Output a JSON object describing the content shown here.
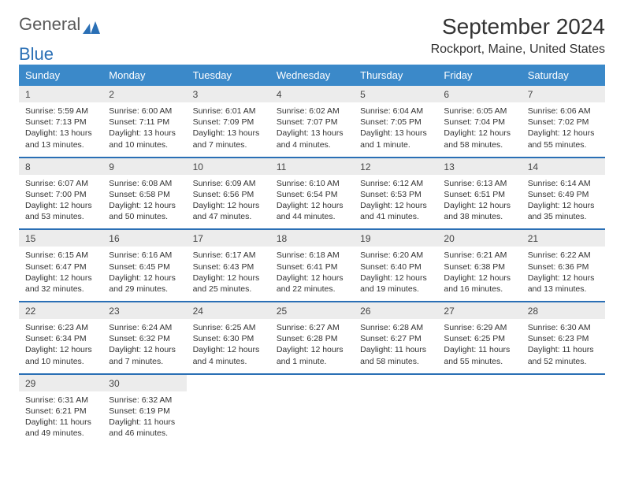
{
  "logo": {
    "word1": "General",
    "word2": "Blue"
  },
  "title": "September 2024",
  "location": "Rockport, Maine, United States",
  "colors": {
    "header_bar": "#3b89c9",
    "divider": "#2a6fb5",
    "day_num_bg": "#ececec",
    "text": "#333333",
    "logo_gray": "#5a5a5a",
    "logo_blue": "#2a6fb5",
    "background": "#ffffff"
  },
  "dow": [
    "Sunday",
    "Monday",
    "Tuesday",
    "Wednesday",
    "Thursday",
    "Friday",
    "Saturday"
  ],
  "weeks": [
    [
      {
        "n": "1",
        "sunrise": "Sunrise: 5:59 AM",
        "sunset": "Sunset: 7:13 PM",
        "day1": "Daylight: 13 hours",
        "day2": "and 13 minutes."
      },
      {
        "n": "2",
        "sunrise": "Sunrise: 6:00 AM",
        "sunset": "Sunset: 7:11 PM",
        "day1": "Daylight: 13 hours",
        "day2": "and 10 minutes."
      },
      {
        "n": "3",
        "sunrise": "Sunrise: 6:01 AM",
        "sunset": "Sunset: 7:09 PM",
        "day1": "Daylight: 13 hours",
        "day2": "and 7 minutes."
      },
      {
        "n": "4",
        "sunrise": "Sunrise: 6:02 AM",
        "sunset": "Sunset: 7:07 PM",
        "day1": "Daylight: 13 hours",
        "day2": "and 4 minutes."
      },
      {
        "n": "5",
        "sunrise": "Sunrise: 6:04 AM",
        "sunset": "Sunset: 7:05 PM",
        "day1": "Daylight: 13 hours",
        "day2": "and 1 minute."
      },
      {
        "n": "6",
        "sunrise": "Sunrise: 6:05 AM",
        "sunset": "Sunset: 7:04 PM",
        "day1": "Daylight: 12 hours",
        "day2": "and 58 minutes."
      },
      {
        "n": "7",
        "sunrise": "Sunrise: 6:06 AM",
        "sunset": "Sunset: 7:02 PM",
        "day1": "Daylight: 12 hours",
        "day2": "and 55 minutes."
      }
    ],
    [
      {
        "n": "8",
        "sunrise": "Sunrise: 6:07 AM",
        "sunset": "Sunset: 7:00 PM",
        "day1": "Daylight: 12 hours",
        "day2": "and 53 minutes."
      },
      {
        "n": "9",
        "sunrise": "Sunrise: 6:08 AM",
        "sunset": "Sunset: 6:58 PM",
        "day1": "Daylight: 12 hours",
        "day2": "and 50 minutes."
      },
      {
        "n": "10",
        "sunrise": "Sunrise: 6:09 AM",
        "sunset": "Sunset: 6:56 PM",
        "day1": "Daylight: 12 hours",
        "day2": "and 47 minutes."
      },
      {
        "n": "11",
        "sunrise": "Sunrise: 6:10 AM",
        "sunset": "Sunset: 6:54 PM",
        "day1": "Daylight: 12 hours",
        "day2": "and 44 minutes."
      },
      {
        "n": "12",
        "sunrise": "Sunrise: 6:12 AM",
        "sunset": "Sunset: 6:53 PM",
        "day1": "Daylight: 12 hours",
        "day2": "and 41 minutes."
      },
      {
        "n": "13",
        "sunrise": "Sunrise: 6:13 AM",
        "sunset": "Sunset: 6:51 PM",
        "day1": "Daylight: 12 hours",
        "day2": "and 38 minutes."
      },
      {
        "n": "14",
        "sunrise": "Sunrise: 6:14 AM",
        "sunset": "Sunset: 6:49 PM",
        "day1": "Daylight: 12 hours",
        "day2": "and 35 minutes."
      }
    ],
    [
      {
        "n": "15",
        "sunrise": "Sunrise: 6:15 AM",
        "sunset": "Sunset: 6:47 PM",
        "day1": "Daylight: 12 hours",
        "day2": "and 32 minutes."
      },
      {
        "n": "16",
        "sunrise": "Sunrise: 6:16 AM",
        "sunset": "Sunset: 6:45 PM",
        "day1": "Daylight: 12 hours",
        "day2": "and 29 minutes."
      },
      {
        "n": "17",
        "sunrise": "Sunrise: 6:17 AM",
        "sunset": "Sunset: 6:43 PM",
        "day1": "Daylight: 12 hours",
        "day2": "and 25 minutes."
      },
      {
        "n": "18",
        "sunrise": "Sunrise: 6:18 AM",
        "sunset": "Sunset: 6:41 PM",
        "day1": "Daylight: 12 hours",
        "day2": "and 22 minutes."
      },
      {
        "n": "19",
        "sunrise": "Sunrise: 6:20 AM",
        "sunset": "Sunset: 6:40 PM",
        "day1": "Daylight: 12 hours",
        "day2": "and 19 minutes."
      },
      {
        "n": "20",
        "sunrise": "Sunrise: 6:21 AM",
        "sunset": "Sunset: 6:38 PM",
        "day1": "Daylight: 12 hours",
        "day2": "and 16 minutes."
      },
      {
        "n": "21",
        "sunrise": "Sunrise: 6:22 AM",
        "sunset": "Sunset: 6:36 PM",
        "day1": "Daylight: 12 hours",
        "day2": "and 13 minutes."
      }
    ],
    [
      {
        "n": "22",
        "sunrise": "Sunrise: 6:23 AM",
        "sunset": "Sunset: 6:34 PM",
        "day1": "Daylight: 12 hours",
        "day2": "and 10 minutes."
      },
      {
        "n": "23",
        "sunrise": "Sunrise: 6:24 AM",
        "sunset": "Sunset: 6:32 PM",
        "day1": "Daylight: 12 hours",
        "day2": "and 7 minutes."
      },
      {
        "n": "24",
        "sunrise": "Sunrise: 6:25 AM",
        "sunset": "Sunset: 6:30 PM",
        "day1": "Daylight: 12 hours",
        "day2": "and 4 minutes."
      },
      {
        "n": "25",
        "sunrise": "Sunrise: 6:27 AM",
        "sunset": "Sunset: 6:28 PM",
        "day1": "Daylight: 12 hours",
        "day2": "and 1 minute."
      },
      {
        "n": "26",
        "sunrise": "Sunrise: 6:28 AM",
        "sunset": "Sunset: 6:27 PM",
        "day1": "Daylight: 11 hours",
        "day2": "and 58 minutes."
      },
      {
        "n": "27",
        "sunrise": "Sunrise: 6:29 AM",
        "sunset": "Sunset: 6:25 PM",
        "day1": "Daylight: 11 hours",
        "day2": "and 55 minutes."
      },
      {
        "n": "28",
        "sunrise": "Sunrise: 6:30 AM",
        "sunset": "Sunset: 6:23 PM",
        "day1": "Daylight: 11 hours",
        "day2": "and 52 minutes."
      }
    ],
    [
      {
        "n": "29",
        "sunrise": "Sunrise: 6:31 AM",
        "sunset": "Sunset: 6:21 PM",
        "day1": "Daylight: 11 hours",
        "day2": "and 49 minutes."
      },
      {
        "n": "30",
        "sunrise": "Sunrise: 6:32 AM",
        "sunset": "Sunset: 6:19 PM",
        "day1": "Daylight: 11 hours",
        "day2": "and 46 minutes."
      },
      null,
      null,
      null,
      null,
      null
    ]
  ]
}
